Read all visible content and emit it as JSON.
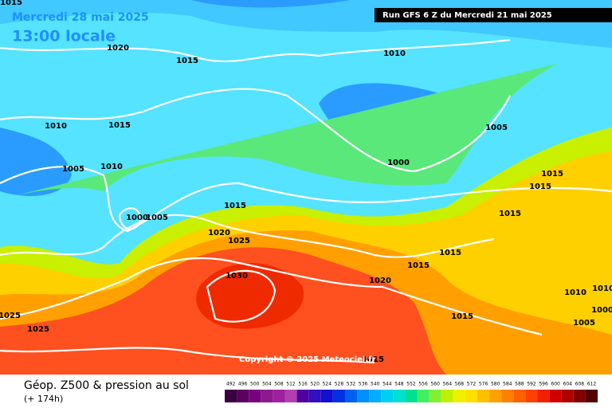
{
  "header": {
    "date": "Mercredi 28 mai 2025",
    "time": "13:00 locale",
    "run": "Run GFS 6 Z du Mercredi 21 mai 2025"
  },
  "copyright": "Copyright © 2025 Meteociel.fr",
  "footer": {
    "title": "Géop. Z500 & pression au sol",
    "lead": "(+ 174h)"
  },
  "isobar_labels": [
    1015,
    1020,
    1015,
    1010,
    1010,
    1015,
    1005,
    1005,
    1010,
    1000,
    1015,
    1015,
    1015,
    1000,
    1005,
    1015,
    1020,
    1025,
    1015,
    1015,
    1030,
    1020,
    1010,
    1010,
    1000,
    1015,
    1025,
    1025,
    1005,
    1015
  ],
  "colorbar": {
    "values": [
      492,
      496,
      500,
      504,
      508,
      512,
      516,
      520,
      524,
      528,
      532,
      536,
      540,
      544,
      548,
      552,
      556,
      560,
      564,
      568,
      572,
      576,
      580,
      584,
      588,
      592,
      596,
      600,
      604,
      608,
      612
    ],
    "colors": [
      "#3b0040",
      "#5a0060",
      "#7a0080",
      "#8c1a8c",
      "#a020a0",
      "#b040b0",
      "#5000a0",
      "#3010c0",
      "#1010d0",
      "#0030e0",
      "#0060f0",
      "#0090ff",
      "#00b0ff",
      "#00d0f0",
      "#00e0d0",
      "#00e090",
      "#40f060",
      "#80f030",
      "#c0f000",
      "#f0f000",
      "#ffe000",
      "#ffc000",
      "#ffa000",
      "#ff8000",
      "#ff6000",
      "#ff4000",
      "#f02000",
      "#d00000",
      "#b00000",
      "#800000",
      "#500000"
    ]
  }
}
